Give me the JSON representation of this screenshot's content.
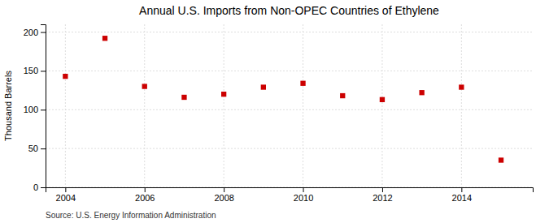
{
  "chart_data": {
    "type": "scatter",
    "title": "Annual U.S. Imports from Non-OPEC Countries of Ethylene",
    "ylabel": "Thousand Barrels",
    "annotations": [
      "Source: U.S. Energy Information Administration"
    ],
    "x": [
      2004,
      2005,
      2006,
      2007,
      2008,
      2009,
      2010,
      2011,
      2012,
      2013,
      2014,
      2015
    ],
    "values": [
      143,
      192,
      130,
      116,
      120,
      129,
      134,
      118,
      113,
      122,
      129,
      35
    ],
    "color": "#cc0000",
    "marker": "square",
    "xlim": [
      2003.5,
      2015.8
    ],
    "ylim": [
      0,
      210
    ],
    "xticks": [
      2004,
      2006,
      2008,
      2010,
      2012,
      2014
    ],
    "yticks": [
      0,
      50,
      100,
      150,
      200
    ],
    "grid": true
  }
}
